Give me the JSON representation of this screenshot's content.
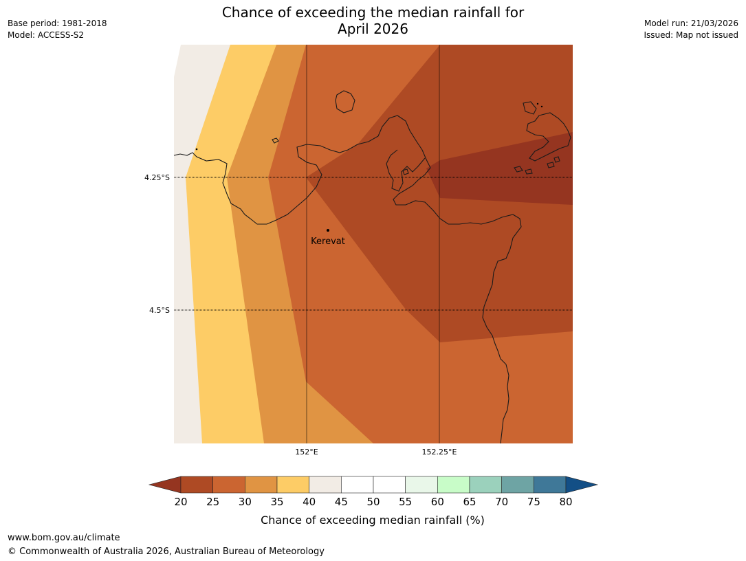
{
  "title_line1": "Chance of exceeding the median rainfall for",
  "title_line2": "April 2026",
  "meta": {
    "base_period": "Base period: 1981-2018",
    "model": "Model: ACCESS-S2",
    "model_run": "Model run: 21/03/2026",
    "issued": "Issued: Map not issued"
  },
  "map": {
    "place_label": "Kerevat",
    "lat_labels": [
      "4.25°S",
      "4.5°S"
    ],
    "lon_labels": [
      "152°E",
      "152.25°E"
    ]
  },
  "colorbar": {
    "label": "Chance of exceeding median rainfall (%)",
    "ticks": [
      "20",
      "25",
      "30",
      "35",
      "40",
      "45",
      "50",
      "55",
      "60",
      "65",
      "70",
      "75",
      "80"
    ],
    "under_color": "#953520",
    "over_color": "#134f86",
    "colors": [
      "#ae4a24",
      "#cb6531",
      "#e09443",
      "#fdcc66",
      "#f2ece5",
      "#ffffff",
      "#ffffff",
      "#e9f7e9",
      "#c8fcc8",
      "#9bd1bc",
      "#6ea4a4",
      "#3f7898"
    ]
  },
  "footer": {
    "url": "www.bom.gov.au/climate",
    "copyright": "© Commonwealth of Australia 2026, Australian Bureau of Meteorology"
  }
}
